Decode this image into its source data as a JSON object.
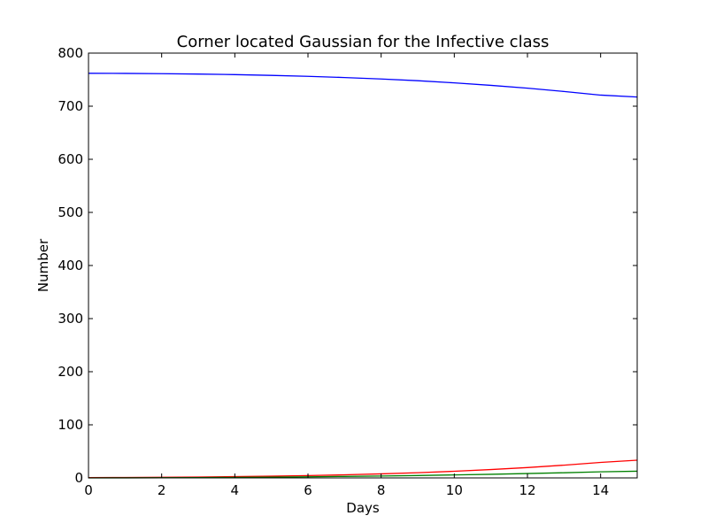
{
  "chart_data": {
    "type": "line",
    "title": "Corner located Gaussian for the Infective class",
    "xlabel": "Days",
    "ylabel": "Number",
    "xlim": [
      0,
      15
    ],
    "ylim": [
      0,
      800
    ],
    "xticks": [
      0,
      2,
      4,
      6,
      8,
      10,
      12,
      14
    ],
    "yticks": [
      0,
      100,
      200,
      300,
      400,
      500,
      600,
      700,
      800
    ],
    "grid": false,
    "x": [
      0,
      1,
      2,
      3,
      4,
      5,
      6,
      7,
      8,
      9,
      10,
      11,
      12,
      13,
      14,
      15
    ],
    "series": [
      {
        "color": "#0000ff",
        "values": [
          762,
          761.8,
          761.3,
          760.5,
          759.5,
          758,
          756.2,
          754,
          751.3,
          748,
          744,
          739.3,
          734,
          727.7,
          720.9,
          717.3
        ]
      },
      {
        "color": "#ff0000",
        "values": [
          0.5,
          0.8,
          1.2,
          1.7,
          2.4,
          3.3,
          4.4,
          5.8,
          7.6,
          9.8,
          12.5,
          15.7,
          19.5,
          24,
          29.2,
          33.3
        ]
      },
      {
        "color": "#008000",
        "values": [
          0,
          0.1,
          0.3,
          0.6,
          1,
          1.5,
          2.1,
          2.8,
          3.6,
          4.5,
          5.6,
          6.8,
          8.2,
          9.7,
          11.4,
          12.6
        ]
      }
    ]
  }
}
